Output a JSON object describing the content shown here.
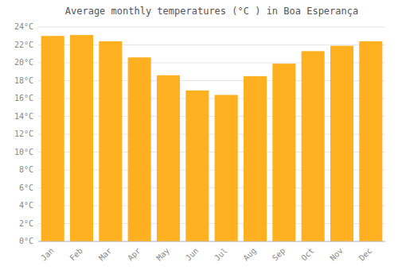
{
  "chart_data": {
    "type": "bar",
    "title": "Average monthly temperatures (°C ) in Boa Esperança",
    "categories": [
      "Jan",
      "Feb",
      "Mar",
      "Apr",
      "May",
      "Jun",
      "Jul",
      "Aug",
      "Sep",
      "Oct",
      "Nov",
      "Dec"
    ],
    "values": [
      23.0,
      23.1,
      22.4,
      20.6,
      18.6,
      16.9,
      16.4,
      18.5,
      19.9,
      21.3,
      21.9,
      22.4
    ],
    "color": "#FFB020",
    "ylim": [
      0,
      24
    ],
    "yticks": [
      {
        "value": 0,
        "label": "0°C"
      },
      {
        "value": 2,
        "label": "2°C"
      },
      {
        "value": 4,
        "label": "4°C"
      },
      {
        "value": 6,
        "label": "6°C"
      },
      {
        "value": 8,
        "label": "8°C"
      },
      {
        "value": 10,
        "label": "10°C"
      },
      {
        "value": 12,
        "label": "12°C"
      },
      {
        "value": 14,
        "label": "14°C"
      },
      {
        "value": 16,
        "label": "16°C"
      },
      {
        "value": 18,
        "label": "18°C"
      },
      {
        "value": 20,
        "label": "20°C"
      },
      {
        "value": 22,
        "label": "22°C"
      },
      {
        "value": 24,
        "label": "24°C"
      }
    ],
    "grid": true
  }
}
